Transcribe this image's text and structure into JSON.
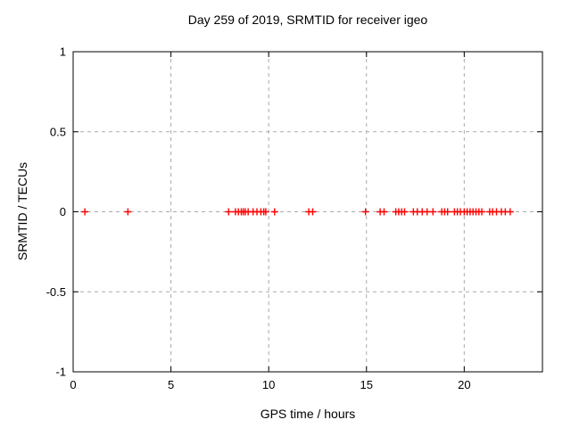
{
  "window": {
    "background_color": "#ffffff"
  },
  "chart_data": {
    "type": "scatter",
    "title": "Day 259 of 2019, SRMTID for receiver igeo",
    "xlabel": "GPS time / hours",
    "ylabel": "SRMTID / TECUs",
    "xlim": [
      0,
      24
    ],
    "ylim": [
      -1,
      1
    ],
    "xticks": [
      0,
      5,
      10,
      15,
      20
    ],
    "xtick_labels": [
      "0",
      "5",
      "10",
      "15",
      "20"
    ],
    "yticks": [
      -1,
      -0.5,
      0,
      0.5,
      1
    ],
    "ytick_labels": [
      "-1",
      "-0.5",
      "0",
      "0.5",
      "1"
    ],
    "grid": true,
    "legend": "none",
    "marker_style": "plus",
    "series": [
      {
        "name": "SRMTID",
        "color": "#ff0000",
        "y_value": 0,
        "x": [
          0.6,
          2.8,
          7.95,
          8.3,
          8.45,
          8.6,
          8.7,
          8.8,
          8.95,
          9.2,
          9.4,
          9.6,
          9.75,
          9.85,
          10.3,
          12.05,
          12.25,
          14.95,
          15.7,
          15.9,
          16.5,
          16.65,
          16.8,
          16.95,
          17.4,
          17.6,
          17.85,
          18.1,
          18.4,
          18.85,
          19.0,
          19.15,
          19.5,
          19.65,
          19.8,
          20.0,
          20.15,
          20.3,
          20.45,
          20.6,
          20.75,
          20.9,
          21.3,
          21.45,
          21.65,
          21.9,
          22.1,
          22.35
        ]
      }
    ]
  },
  "colors": {
    "marker": "#ff0000",
    "grid": "#aaaaaa",
    "axis": "#000000",
    "text": "#000000",
    "background": "#ffffff"
  }
}
